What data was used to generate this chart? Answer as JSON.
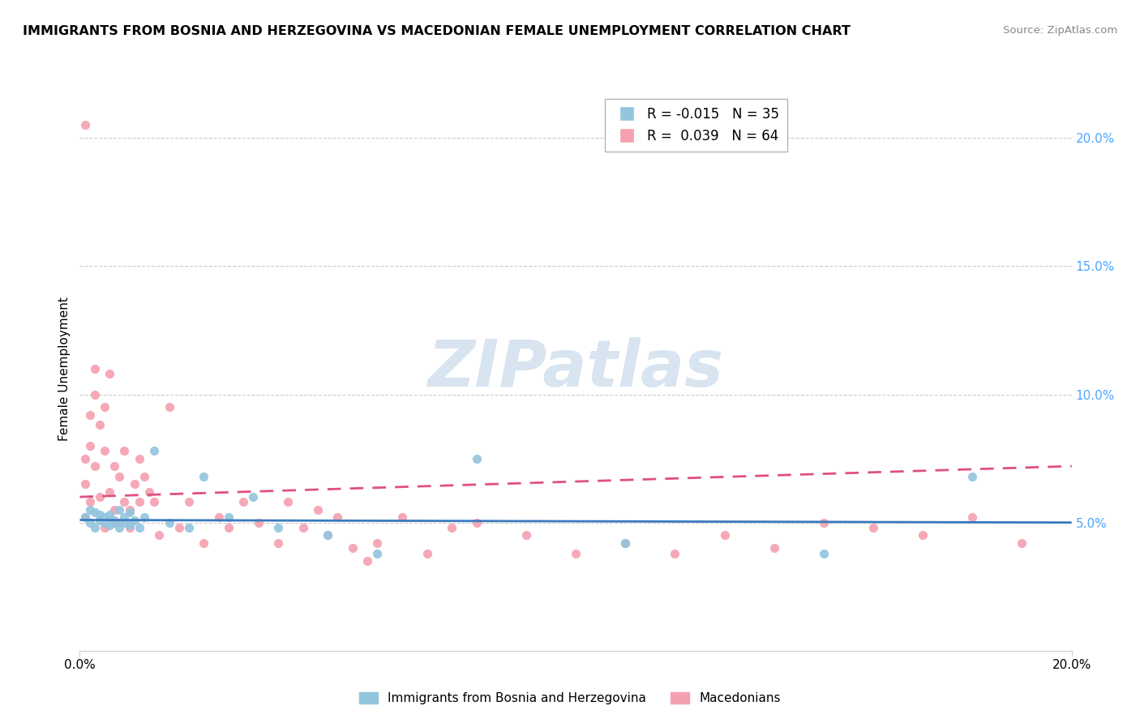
{
  "title": "IMMIGRANTS FROM BOSNIA AND HERZEGOVINA VS MACEDONIAN FEMALE UNEMPLOYMENT CORRELATION CHART",
  "source": "Source: ZipAtlas.com",
  "ylabel": "Female Unemployment",
  "xmin": 0.0,
  "xmax": 0.2,
  "ymin": 0.0,
  "ymax": 0.22,
  "yticks": [
    0.05,
    0.1,
    0.15,
    0.2
  ],
  "ytick_labels": [
    "5.0%",
    "10.0%",
    "15.0%",
    "20.0%"
  ],
  "legend_blue_r": "R = -0.015",
  "legend_blue_n": "N = 35",
  "legend_pink_r": "R =  0.039",
  "legend_pink_n": "N = 64",
  "blue_color": "#92c5de",
  "pink_color": "#f4a0b0",
  "trendline_blue_color": "#3a7abf",
  "trendline_pink_color": "#e05080",
  "watermark_color": "#d8e4f0",
  "blue_scatter_x": [
    0.001,
    0.002,
    0.002,
    0.003,
    0.003,
    0.004,
    0.004,
    0.005,
    0.005,
    0.006,
    0.006,
    0.007,
    0.007,
    0.008,
    0.008,
    0.009,
    0.009,
    0.01,
    0.01,
    0.011,
    0.012,
    0.013,
    0.015,
    0.018,
    0.022,
    0.025,
    0.03,
    0.035,
    0.04,
    0.05,
    0.06,
    0.08,
    0.11,
    0.15,
    0.18
  ],
  "blue_scatter_y": [
    0.052,
    0.05,
    0.055,
    0.048,
    0.054,
    0.051,
    0.053,
    0.05,
    0.052,
    0.049,
    0.053,
    0.05,
    0.051,
    0.048,
    0.055,
    0.052,
    0.05,
    0.049,
    0.054,
    0.051,
    0.048,
    0.052,
    0.078,
    0.05,
    0.048,
    0.068,
    0.052,
    0.06,
    0.048,
    0.045,
    0.038,
    0.075,
    0.042,
    0.038,
    0.068
  ],
  "pink_scatter_x": [
    0.001,
    0.001,
    0.001,
    0.001,
    0.002,
    0.002,
    0.002,
    0.003,
    0.003,
    0.003,
    0.004,
    0.004,
    0.005,
    0.005,
    0.005,
    0.006,
    0.006,
    0.007,
    0.007,
    0.008,
    0.008,
    0.009,
    0.009,
    0.01,
    0.01,
    0.011,
    0.012,
    0.012,
    0.013,
    0.014,
    0.015,
    0.016,
    0.018,
    0.02,
    0.022,
    0.025,
    0.028,
    0.03,
    0.033,
    0.036,
    0.04,
    0.045,
    0.05,
    0.055,
    0.06,
    0.065,
    0.07,
    0.075,
    0.08,
    0.09,
    0.1,
    0.11,
    0.12,
    0.13,
    0.14,
    0.15,
    0.16,
    0.17,
    0.18,
    0.19,
    0.042,
    0.048,
    0.052,
    0.058
  ],
  "pink_scatter_y": [
    0.052,
    0.065,
    0.075,
    0.205,
    0.058,
    0.08,
    0.092,
    0.072,
    0.1,
    0.11,
    0.088,
    0.06,
    0.078,
    0.095,
    0.048,
    0.062,
    0.108,
    0.055,
    0.072,
    0.05,
    0.068,
    0.058,
    0.078,
    0.055,
    0.048,
    0.065,
    0.058,
    0.075,
    0.068,
    0.062,
    0.058,
    0.045,
    0.095,
    0.048,
    0.058,
    0.042,
    0.052,
    0.048,
    0.058,
    0.05,
    0.042,
    0.048,
    0.045,
    0.04,
    0.042,
    0.052,
    0.038,
    0.048,
    0.05,
    0.045,
    0.038,
    0.042,
    0.038,
    0.045,
    0.04,
    0.05,
    0.048,
    0.045,
    0.052,
    0.042,
    0.058,
    0.055,
    0.052,
    0.035
  ],
  "blue_trend_x0": 0.0,
  "blue_trend_x1": 0.2,
  "blue_trend_y0": 0.051,
  "blue_trend_y1": 0.05,
  "pink_trend_x0": 0.0,
  "pink_trend_x1": 0.2,
  "pink_trend_y0": 0.06,
  "pink_trend_y1": 0.072
}
